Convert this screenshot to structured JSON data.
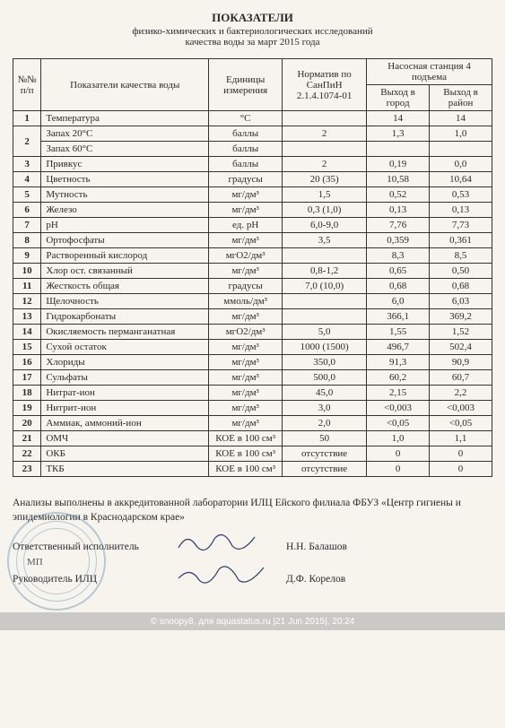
{
  "header": {
    "title": "ПОКАЗАТЕЛИ",
    "subtitle1": "физико-химических и бактериологических исследований",
    "subtitle2": "качества воды за март 2015 года"
  },
  "columns": {
    "num": "№№ п/п",
    "indicator": "Показатели качества воды",
    "unit": "Единицы измерения",
    "norm": "Норматив по СанПиН 2.1.4.1074-01",
    "station": "Насосная станция 4 подъема",
    "out_city": "Выход в город",
    "out_region": "Выход в район"
  },
  "rows": [
    {
      "n": "1",
      "name": "Температура",
      "unit": "°С",
      "norm": "",
      "v1": "14",
      "v2": "14"
    },
    {
      "n": "2",
      "name": "Запах 20°С",
      "unit": "баллы",
      "norm": "2",
      "v1": "1,3",
      "v2": "1,0"
    },
    {
      "n": "",
      "name": "Запах 60°С",
      "unit": "баллы",
      "norm": "",
      "v1": "",
      "v2": ""
    },
    {
      "n": "3",
      "name": "Привкус",
      "unit": "баллы",
      "norm": "2",
      "v1": "0,19",
      "v2": "0,0"
    },
    {
      "n": "4",
      "name": "Цветность",
      "unit": "градусы",
      "norm": "20 (35)",
      "v1": "10,58",
      "v2": "10,64"
    },
    {
      "n": "5",
      "name": "Мутность",
      "unit": "мг/дм³",
      "norm": "1,5",
      "v1": "0,52",
      "v2": "0,53"
    },
    {
      "n": "6",
      "name": "Железо",
      "unit": "мг/дм³",
      "norm": "0,3 (1,0)",
      "v1": "0,13",
      "v2": "0,13"
    },
    {
      "n": "7",
      "name": "рН",
      "unit": "ед. рН",
      "norm": "6,0-9,0",
      "v1": "7,76",
      "v2": "7,73"
    },
    {
      "n": "8",
      "name": "Ортофосфаты",
      "unit": "мг/дм³",
      "norm": "3,5",
      "v1": "0,359",
      "v2": "0,361"
    },
    {
      "n": "9",
      "name": "Растворенный кислород",
      "unit": "мгО2/дм³",
      "norm": "",
      "v1": "8,3",
      "v2": "8,5"
    },
    {
      "n": "10",
      "name": "Хлор ост. связанный",
      "unit": "мг/дм³",
      "norm": "0,8-1,2",
      "v1": "0,65",
      "v2": "0,50"
    },
    {
      "n": "11",
      "name": "Жесткость общая",
      "unit": "градусы",
      "norm": "7,0 (10,0)",
      "v1": "0,68",
      "v2": "0,68"
    },
    {
      "n": "12",
      "name": "Щелочность",
      "unit": "ммоль/дм³",
      "norm": "",
      "v1": "6,0",
      "v2": "6,03"
    },
    {
      "n": "13",
      "name": "Гидрокарбонаты",
      "unit": "мг/дм³",
      "norm": "",
      "v1": "366,1",
      "v2": "369,2"
    },
    {
      "n": "14",
      "name": "Окисляемость перманганатная",
      "unit": "мгО2/дм³",
      "norm": "5,0",
      "v1": "1,55",
      "v2": "1,52"
    },
    {
      "n": "15",
      "name": "Сухой остаток",
      "unit": "мг/дм³",
      "norm": "1000 (1500)",
      "v1": "496,7",
      "v2": "502,4"
    },
    {
      "n": "16",
      "name": "Хлориды",
      "unit": "мг/дм³",
      "norm": "350,0",
      "v1": "91,3",
      "v2": "90,9"
    },
    {
      "n": "17",
      "name": "Сульфаты",
      "unit": "мг/дм³",
      "norm": "500,0",
      "v1": "60,2",
      "v2": "60,7"
    },
    {
      "n": "18",
      "name": "Нитрат-ион",
      "unit": "мг/дм³",
      "norm": "45,0",
      "v1": "2,15",
      "v2": "2,2"
    },
    {
      "n": "19",
      "name": "Нитрит-ион",
      "unit": "мг/дм³",
      "norm": "3,0",
      "v1": "<0,003",
      "v2": "<0,003"
    },
    {
      "n": "20",
      "name": "Аммиак, аммоний-ион",
      "unit": "мг/дм³",
      "norm": "2,0",
      "v1": "<0,05",
      "v2": "<0,05"
    },
    {
      "n": "21",
      "name": "ОМЧ",
      "unit": "КОЕ в 100 см³",
      "norm": "50",
      "v1": "1,0",
      "v2": "1,1"
    },
    {
      "n": "22",
      "name": "ОКБ",
      "unit": "КОЕ в 100 см³",
      "norm": "отсутствие",
      "v1": "0",
      "v2": "0"
    },
    {
      "n": "23",
      "name": "ТКБ",
      "unit": "КОЕ в 100 см³",
      "norm": "отсутствие",
      "v1": "0",
      "v2": "0"
    }
  ],
  "bottom": {
    "note": "Анализы выполнены в аккредитованной лаборатории ИЛЦ Ейского филиала ФБУЗ «Центр гигиены и эпидемиологии в Краснодарском крае»",
    "resp_label": "Ответственный исполнитель",
    "resp_name": "Н.Н. Балашов",
    "head_label": "Руководитель ИЛЦ",
    "head_name": "Д.Ф. Корелов",
    "mp": "МП"
  },
  "footer": "© snoopy8, для aquastatus.ru |21 Jun 2015|, 20:24"
}
